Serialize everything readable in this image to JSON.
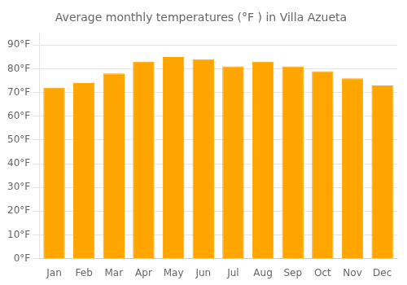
{
  "chart_data": {
    "type": "bar",
    "title": "Average monthly temperatures (°F ) in Villa Azueta",
    "categories": [
      "Jan",
      "Feb",
      "Mar",
      "Apr",
      "May",
      "Jun",
      "Jul",
      "Aug",
      "Sep",
      "Oct",
      "Nov",
      "Dec"
    ],
    "values": [
      72,
      74,
      78,
      83,
      85,
      84,
      81,
      83,
      81,
      79,
      76,
      73
    ],
    "color": "#FFA500",
    "ylim": [
      0,
      95
    ],
    "yticks": [
      {
        "value": 0,
        "label": "0°F"
      },
      {
        "value": 10,
        "label": "10°F"
      },
      {
        "value": 20,
        "label": "20°F"
      },
      {
        "value": 30,
        "label": "30°F"
      },
      {
        "value": 40,
        "label": "40°F"
      },
      {
        "value": 50,
        "label": "50°F"
      },
      {
        "value": 60,
        "label": "60°F"
      },
      {
        "value": 70,
        "label": "70°F"
      },
      {
        "value": 80,
        "label": "80°F"
      },
      {
        "value": 90,
        "label": "90°F"
      }
    ],
    "grid": true
  }
}
